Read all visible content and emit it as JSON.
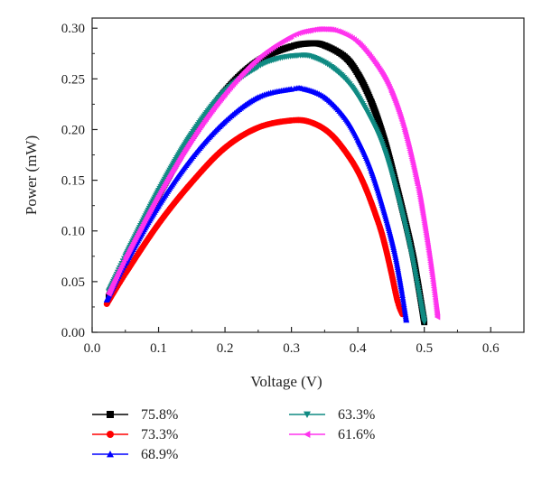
{
  "chart_data": {
    "type": "line",
    "xlabel": "Voltage (V)",
    "ylabel": "Power (mW)",
    "xlim": [
      0.0,
      0.65
    ],
    "ylim": [
      0.0,
      0.31
    ],
    "xticks": [
      "0.0",
      "0.1",
      "0.2",
      "0.3",
      "0.4",
      "0.5",
      "0.6"
    ],
    "yticks": [
      "0.00",
      "0.05",
      "0.10",
      "0.15",
      "0.20",
      "0.25",
      "0.30"
    ],
    "grid": false,
    "legend_position": "bottom",
    "series": [
      {
        "name": "75.8%",
        "color": "#000000",
        "marker": "square",
        "x": [
          0.025,
          0.05,
          0.1,
          0.15,
          0.2,
          0.25,
          0.3,
          0.33,
          0.35,
          0.38,
          0.4,
          0.42,
          0.44,
          0.46,
          0.48,
          0.49,
          0.5
        ],
        "y": [
          0.035,
          0.07,
          0.135,
          0.192,
          0.238,
          0.268,
          0.282,
          0.285,
          0.283,
          0.272,
          0.255,
          0.228,
          0.19,
          0.14,
          0.085,
          0.05,
          0.01
        ]
      },
      {
        "name": "73.3%",
        "color": "#ff0000",
        "marker": "circle",
        "x": [
          0.022,
          0.05,
          0.1,
          0.15,
          0.2,
          0.25,
          0.3,
          0.33,
          0.36,
          0.39,
          0.41,
          0.43,
          0.44,
          0.45,
          0.46,
          0.467
        ],
        "y": [
          0.028,
          0.058,
          0.107,
          0.148,
          0.182,
          0.202,
          0.209,
          0.207,
          0.195,
          0.17,
          0.145,
          0.11,
          0.088,
          0.06,
          0.03,
          0.018
        ]
      },
      {
        "name": "68.9%",
        "color": "#0000ff",
        "marker": "triangle-up",
        "x": [
          0.022,
          0.05,
          0.1,
          0.15,
          0.2,
          0.25,
          0.3,
          0.32,
          0.35,
          0.38,
          0.4,
          0.42,
          0.44,
          0.455,
          0.465,
          0.473
        ],
        "y": [
          0.032,
          0.068,
          0.125,
          0.172,
          0.208,
          0.232,
          0.24,
          0.24,
          0.232,
          0.212,
          0.19,
          0.16,
          0.118,
          0.08,
          0.045,
          0.012
        ]
      },
      {
        "name": "63.3%",
        "color": "#0f8a82",
        "marker": "triangle-down",
        "x": [
          0.025,
          0.05,
          0.1,
          0.15,
          0.2,
          0.25,
          0.28,
          0.31,
          0.33,
          0.36,
          0.39,
          0.42,
          0.44,
          0.46,
          0.48,
          0.5
        ],
        "y": [
          0.04,
          0.075,
          0.14,
          0.196,
          0.238,
          0.262,
          0.27,
          0.273,
          0.272,
          0.262,
          0.243,
          0.21,
          0.18,
          0.135,
          0.08,
          0.01
        ]
      },
      {
        "name": "61.6%",
        "color": "#ff33ee",
        "marker": "triangle-left",
        "x": [
          0.025,
          0.05,
          0.1,
          0.15,
          0.2,
          0.25,
          0.3,
          0.33,
          0.35,
          0.37,
          0.4,
          0.43,
          0.45,
          0.47,
          0.49,
          0.5,
          0.51,
          0.52
        ],
        "y": [
          0.038,
          0.073,
          0.135,
          0.19,
          0.235,
          0.27,
          0.292,
          0.298,
          0.299,
          0.297,
          0.286,
          0.262,
          0.238,
          0.2,
          0.145,
          0.108,
          0.065,
          0.015
        ]
      }
    ]
  }
}
